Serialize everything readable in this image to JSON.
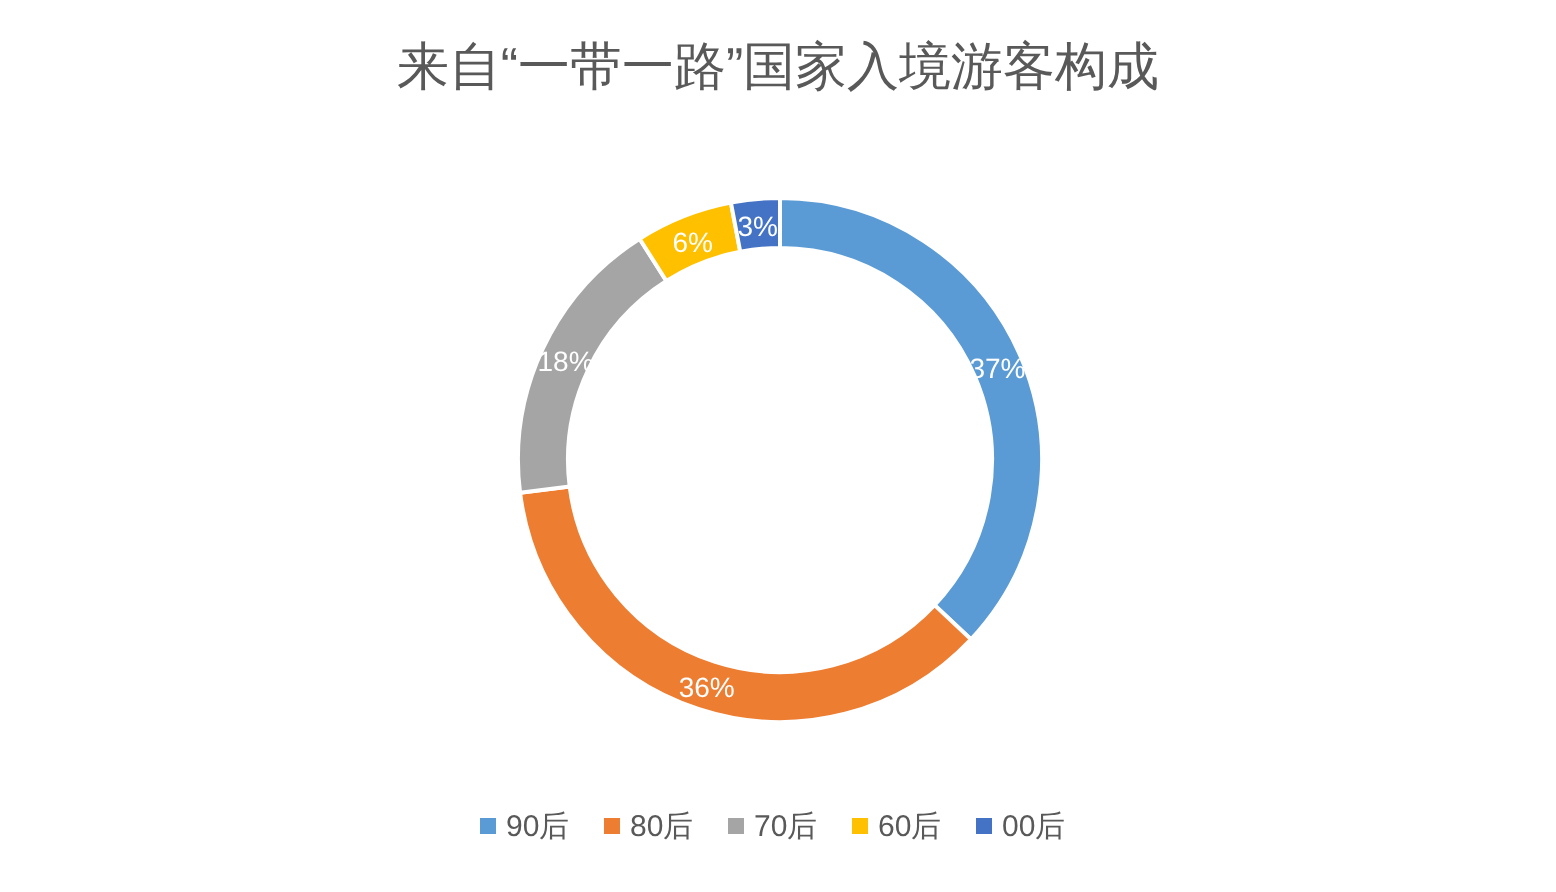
{
  "chart_data": {
    "type": "donut",
    "title": "来自“一带一路”国家入境游客构成",
    "categories": [
      "90后",
      "80后",
      "70后",
      "60后",
      "00后"
    ],
    "values": [
      37,
      36,
      18,
      6,
      3
    ],
    "value_labels": [
      "37%",
      "36%",
      "18%",
      "6%",
      "3%"
    ],
    "colors": [
      "#5b9bd5",
      "#ed7d31",
      "#a5a5a5",
      "#ffc000",
      "#4472c4"
    ],
    "legend": "bottom"
  }
}
